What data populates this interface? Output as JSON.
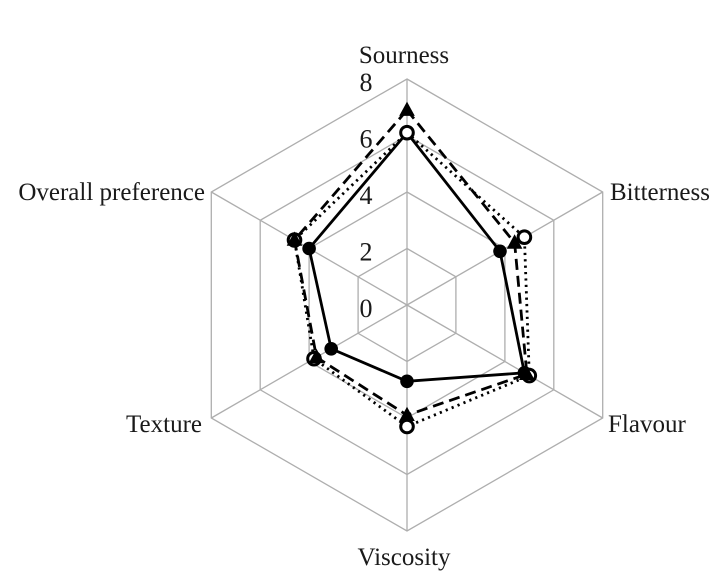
{
  "page": {
    "background_color": "#ffffff"
  },
  "chart_data": {
    "type": "radar",
    "title": "",
    "categories": [
      "Sourness",
      "Bitterness",
      "Flavour",
      "Viscosity",
      "Texture",
      "Overall preference"
    ],
    "ticks": [
      0,
      2,
      4,
      6,
      8
    ],
    "tick_labels": [
      "0",
      "2",
      "4",
      "6",
      "8"
    ],
    "rlim": [
      0,
      8
    ],
    "grid": true,
    "grid_shape": "hexagon",
    "legend": "none",
    "series": [
      {
        "name": "solid line with filled circle markers",
        "marker": "filled-circle",
        "line_style": "solid",
        "color": "#000000",
        "values": [
          6.1,
          3.8,
          4.8,
          2.7,
          3.1,
          4.0
        ]
      },
      {
        "name": "dotted line with open circle markers",
        "marker": "open-circle",
        "line_style": "dotted",
        "color": "#000000",
        "values": [
          6.1,
          4.8,
          5.0,
          4.3,
          3.8,
          4.6
        ]
      },
      {
        "name": "dashed line with filled triangle markers",
        "marker": "filled-triangle",
        "line_style": "dashed",
        "color": "#000000",
        "values": [
          6.9,
          4.4,
          4.9,
          3.9,
          3.7,
          4.6
        ]
      }
    ],
    "colors": {
      "grid": "#aeaeae",
      "series": "#000000",
      "text": "#1a1a1a"
    }
  }
}
